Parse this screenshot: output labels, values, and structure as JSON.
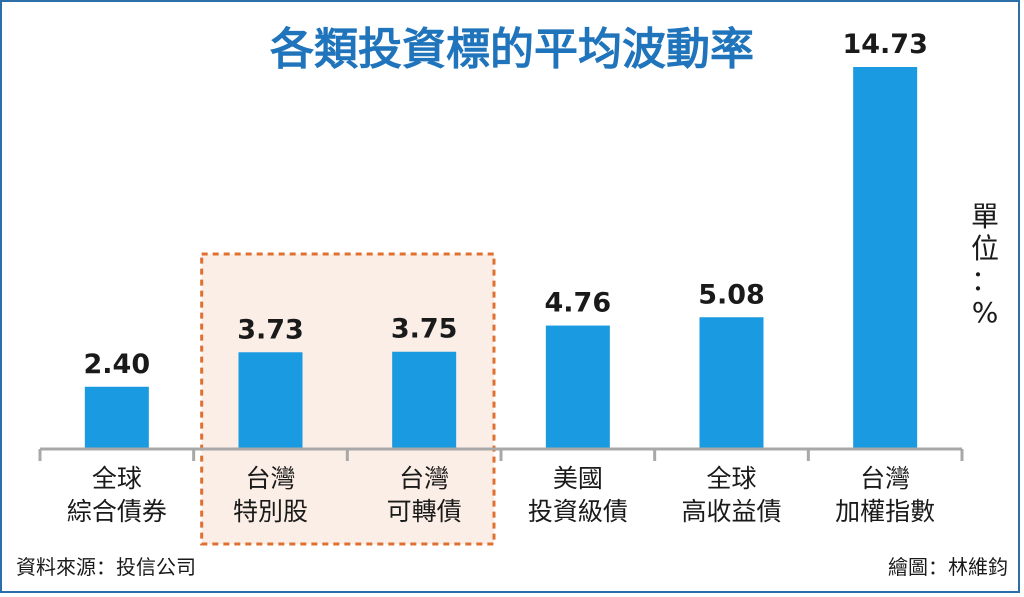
{
  "chart_data": {
    "type": "bar",
    "title": "各類投資標的平均波動率",
    "unit_label": "單位：%",
    "categories": [
      [
        "全球",
        "綜合債券"
      ],
      [
        "台灣",
        "特別股"
      ],
      [
        "台灣",
        "可轉債"
      ],
      [
        "美國",
        "投資級債"
      ],
      [
        "全球",
        "高收益債"
      ],
      [
        "台灣",
        "加權指數"
      ]
    ],
    "values": [
      2.4,
      3.73,
      3.75,
      4.76,
      5.08,
      14.73
    ],
    "value_labels": [
      "2.40",
      "3.73",
      "3.75",
      "4.76",
      "5.08",
      "14.73"
    ],
    "highlighted_categories": [
      1,
      2
    ],
    "ylim": [
      0,
      14.73
    ],
    "grid": false,
    "bar_color": "#1a9ae0",
    "highlight_fill": "#fbeee6",
    "highlight_border": "#e07030"
  },
  "footer": {
    "source": "資料來源：投信公司",
    "credit": "繪圖：林維鈞"
  }
}
